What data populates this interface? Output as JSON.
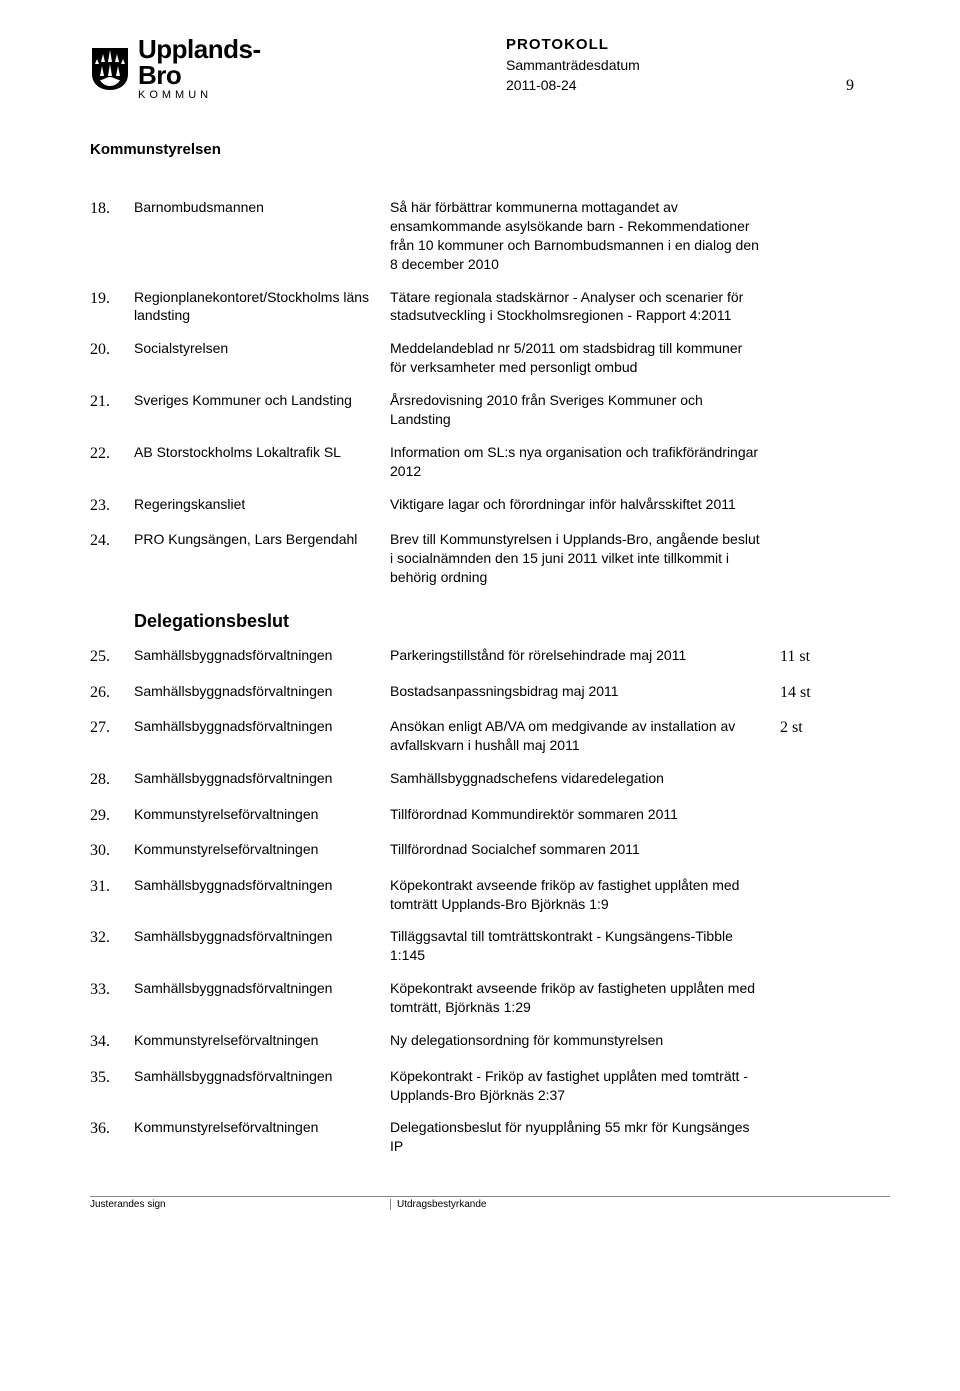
{
  "header": {
    "brand_name": "Upplands-Bro",
    "brand_sub": "KOMMUN",
    "department": "Kommunstyrelsen",
    "doc_type": "PROTOKOLL",
    "meeting_label": "Sammanträdesdatum",
    "date": "2011-08-24",
    "page_number": "9"
  },
  "logo": {
    "shield_fill": "#000000",
    "spike_fill": "#ffffff",
    "kommun_letter_spacing": "4px"
  },
  "rows": [
    {
      "n": "18.",
      "c1": "Barnombudsmannen",
      "c2": "Så här förbättrar kommunerna mottagandet av ensamkommande asylsökande barn - Rekommendationer från 10 kommuner och Barnombudsmannen i en dialog den 8 december 2010",
      "c3": ""
    },
    {
      "n": "19.",
      "c1": "Regionplanekontoret/Stockholms läns landsting",
      "c2": "Tätare regionala stadskärnor - Analyser och scenarier för stadsutveckling i Stockholmsregionen - Rapport 4:2011",
      "c3": ""
    },
    {
      "n": "20.",
      "c1": "Socialstyrelsen",
      "c2": "Meddelandeblad nr 5/2011 om stadsbidrag till kommuner för verksamheter med personligt ombud",
      "c3": ""
    },
    {
      "n": "21.",
      "c1": "Sveriges Kommuner och Landsting",
      "c2": "Årsredovisning 2010 från Sveriges Kommuner och Landsting",
      "c3": ""
    },
    {
      "n": "22.",
      "c1": "AB Storstockholms Lokaltrafik SL",
      "c2": "Information om SL:s nya organisation och trafikförändringar 2012",
      "c3": ""
    },
    {
      "n": "23.",
      "c1": "Regeringskansliet",
      "c2": "Viktigare lagar och förordningar inför halvårsskiftet 2011",
      "c3": ""
    },
    {
      "n": "24.",
      "c1": "PRO Kungsängen, Lars Bergendahl",
      "c2": "Brev till Kommunstyrelsen i Upplands-Bro, angående beslut i socialnämnden den 15 juni 2011 vilket inte tillkommit i behörig ordning",
      "c3": ""
    }
  ],
  "section_title": "Delegationsbeslut",
  "rows2": [
    {
      "n": "25.",
      "c1": "Samhällsbyggnadsförvaltningen",
      "c2": "Parkeringstillstånd för rörelsehindrade maj 2011",
      "c3": "11 st"
    },
    {
      "n": "26.",
      "c1": "Samhällsbyggnadsförvaltningen",
      "c2": "Bostadsanpassningsbidrag maj 2011",
      "c3": "14 st"
    },
    {
      "n": "27.",
      "c1": "Samhällsbyggnadsförvaltningen",
      "c2": "Ansökan enligt AB/VA om medgivande av installation av avfallskvarn i hushåll maj 2011",
      "c3": "2 st"
    },
    {
      "n": "28.",
      "c1": "Samhällsbyggnadsförvaltningen",
      "c2": "Samhällsbyggnadschefens vidaredelegation",
      "c3": ""
    },
    {
      "n": "29.",
      "c1": "Kommunstyrelseförvaltningen",
      "c2": "Tillförordnad Kommundirektör sommaren 2011",
      "c3": ""
    },
    {
      "n": "30.",
      "c1": "Kommunstyrelseförvaltningen",
      "c2": "Tillförordnad Socialchef sommaren 2011",
      "c3": ""
    },
    {
      "n": "31.",
      "c1": "Samhällsbyggnadsförvaltningen",
      "c2": "Köpekontrakt avseende friköp av fastighet upplåten med tomträtt Upplands-Bro Björknäs 1:9",
      "c3": ""
    },
    {
      "n": "32.",
      "c1": "Samhällsbyggnadsförvaltningen",
      "c2": "Tilläggsavtal till tomträttskontrakt - Kungsängens-Tibble 1:145",
      "c3": ""
    },
    {
      "n": "33.",
      "c1": "Samhällsbyggnadsförvaltningen",
      "c2": "Köpekontrakt avseende friköp av fastigheten upplåten med tomträtt, Björknäs 1:29",
      "c3": ""
    },
    {
      "n": "34.",
      "c1": "Kommunstyrelseförvaltningen",
      "c2": "Ny delegationsordning för kommunstyrelsen",
      "c3": ""
    },
    {
      "n": "35.",
      "c1": "Samhällsbyggnadsförvaltningen",
      "c2": "Köpekontrakt - Friköp av fastighet upplåten med tomträtt - Upplands-Bro Björknäs 2:37",
      "c3": ""
    },
    {
      "n": "36.",
      "c1": "Kommunstyrelseförvaltningen",
      "c2": "Delegationsbeslut för nyupplåning 55 mkr för Kungsänges IP",
      "c3": ""
    }
  ],
  "footer": {
    "left": "Justerandes sign",
    "right": "Utdragsbestyrkande"
  }
}
